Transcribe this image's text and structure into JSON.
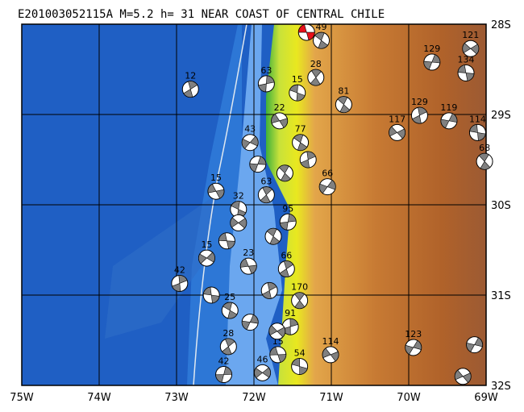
{
  "title": "E201003052115A  M=5.2  h= 31  NEAR COAST OF CENTRAL CHILE",
  "map": {
    "xlim": [
      -75,
      -69
    ],
    "ylim": [
      -32,
      -28
    ],
    "xticks": [
      {
        "value": -75,
        "label": "75W"
      },
      {
        "value": -74,
        "label": "74W"
      },
      {
        "value": -73,
        "label": "73W"
      },
      {
        "value": -72,
        "label": "72W"
      },
      {
        "value": -71,
        "label": "71W"
      },
      {
        "value": -70,
        "label": "70W"
      },
      {
        "value": -69,
        "label": "69W"
      }
    ],
    "yticks": [
      {
        "value": -28,
        "label": "28S"
      },
      {
        "value": -29,
        "label": "29S"
      },
      {
        "value": -30,
        "label": "30S"
      },
      {
        "value": -31,
        "label": "31S"
      },
      {
        "value": -32,
        "label": "32S"
      }
    ],
    "grid": true,
    "events": [
      {
        "lon": -71.32,
        "lat": -28.09,
        "depth": null,
        "color": "#e8101a"
      },
      {
        "lon": -71.13,
        "lat": -28.18,
        "depth": 49,
        "color": "#808080"
      },
      {
        "lon": -72.82,
        "lat": -28.72,
        "depth": 12,
        "color": "#808080"
      },
      {
        "lon": -69.7,
        "lat": -28.42,
        "depth": 129,
        "color": "#808080"
      },
      {
        "lon": -69.2,
        "lat": -28.27,
        "depth": 121,
        "color": "#808080"
      },
      {
        "lon": -69.26,
        "lat": -28.54,
        "depth": 134,
        "color": "#808080"
      },
      {
        "lon": -70.84,
        "lat": -28.89,
        "depth": 81,
        "color": "#808080"
      },
      {
        "lon": -69.86,
        "lat": -29.01,
        "depth": 129,
        "color": "#808080"
      },
      {
        "lon": -69.48,
        "lat": -29.07,
        "depth": 119,
        "color": "#808080"
      },
      {
        "lon": -70.15,
        "lat": -29.2,
        "depth": 117,
        "color": "#808080"
      },
      {
        "lon": -69.11,
        "lat": -29.2,
        "depth": 114,
        "color": "#808080"
      },
      {
        "lon": -69.02,
        "lat": -29.52,
        "depth": 68,
        "color": "#808080"
      },
      {
        "lon": -72.96,
        "lat": -30.87,
        "depth": 42,
        "color": "#808080"
      },
      {
        "lon": -69.94,
        "lat": -31.58,
        "depth": 123,
        "color": "#808080"
      },
      {
        "lon": -71.01,
        "lat": -31.66,
        "depth": 114,
        "color": "#808080"
      },
      {
        "lon": -71.41,
        "lat": -31.79,
        "depth": 54,
        "color": "#808080"
      },
      {
        "lon": -71.41,
        "lat": -31.06,
        "depth": 170,
        "color": "#808080"
      },
      {
        "lon": -71.53,
        "lat": -31.35,
        "depth": 91,
        "color": "#808080"
      },
      {
        "lon": -71.05,
        "lat": -29.8,
        "depth": 66,
        "color": "#808080"
      },
      {
        "lon": -71.67,
        "lat": -29.07,
        "depth": 22,
        "color": "#808080"
      },
      {
        "lon": -71.44,
        "lat": -28.76,
        "depth": 15,
        "color": "#808080"
      },
      {
        "lon": -71.2,
        "lat": -28.59,
        "depth": 28,
        "color": "#808080"
      },
      {
        "lon": -71.84,
        "lat": -28.66,
        "depth": 63,
        "color": "#808080"
      },
      {
        "lon": -72.05,
        "lat": -29.31,
        "depth": 43,
        "color": "#808080"
      },
      {
        "lon": -72.49,
        "lat": -29.85,
        "depth": 15,
        "color": "#808080"
      },
      {
        "lon": -72.2,
        "lat": -30.05,
        "depth": 32,
        "color": "#808080"
      },
      {
        "lon": -71.84,
        "lat": -29.89,
        "depth": 63,
        "color": "#808080"
      },
      {
        "lon": -71.56,
        "lat": -30.19,
        "depth": 95,
        "color": "#808080"
      },
      {
        "lon": -72.61,
        "lat": -30.59,
        "depth": 15,
        "color": "#808080"
      },
      {
        "lon": -72.07,
        "lat": -30.68,
        "depth": 23,
        "color": "#808080"
      },
      {
        "lon": -72.31,
        "lat": -31.17,
        "depth": 25,
        "color": "#808080"
      },
      {
        "lon": -72.33,
        "lat": -31.57,
        "depth": 28,
        "color": "#808080"
      },
      {
        "lon": -72.39,
        "lat": -31.88,
        "depth": 42,
        "color": "#808080"
      },
      {
        "lon": -71.89,
        "lat": -31.86,
        "depth": 46,
        "color": "#808080"
      },
      {
        "lon": -71.69,
        "lat": -31.66,
        "depth": 15,
        "color": "#808080"
      },
      {
        "lon": -71.4,
        "lat": -29.31,
        "depth": 77,
        "color": "#808080"
      },
      {
        "lon": -71.58,
        "lat": -30.71,
        "depth": 66,
        "color": "#808080"
      },
      {
        "lon": -71.95,
        "lat": -29.55,
        "depth": null,
        "color": "#808080"
      },
      {
        "lon": -72.2,
        "lat": -30.2,
        "depth": null,
        "color": "#808080"
      },
      {
        "lon": -72.35,
        "lat": -30.4,
        "depth": null,
        "color": "#808080"
      },
      {
        "lon": -71.75,
        "lat": -30.35,
        "depth": null,
        "color": "#808080"
      },
      {
        "lon": -71.8,
        "lat": -30.95,
        "depth": null,
        "color": "#808080"
      },
      {
        "lon": -72.05,
        "lat": -31.3,
        "depth": null,
        "color": "#808080"
      },
      {
        "lon": -71.7,
        "lat": -31.4,
        "depth": null,
        "color": "#808080"
      },
      {
        "lon": -72.55,
        "lat": -31.0,
        "depth": null,
        "color": "#808080"
      },
      {
        "lon": -71.6,
        "lat": -29.65,
        "depth": null,
        "color": "#808080"
      },
      {
        "lon": -71.3,
        "lat": -29.5,
        "depth": null,
        "color": "#808080"
      },
      {
        "lon": -69.15,
        "lat": -31.55,
        "depth": null,
        "color": "#808080"
      },
      {
        "lon": -69.3,
        "lat": -31.9,
        "depth": null,
        "color": "#808080"
      }
    ]
  }
}
